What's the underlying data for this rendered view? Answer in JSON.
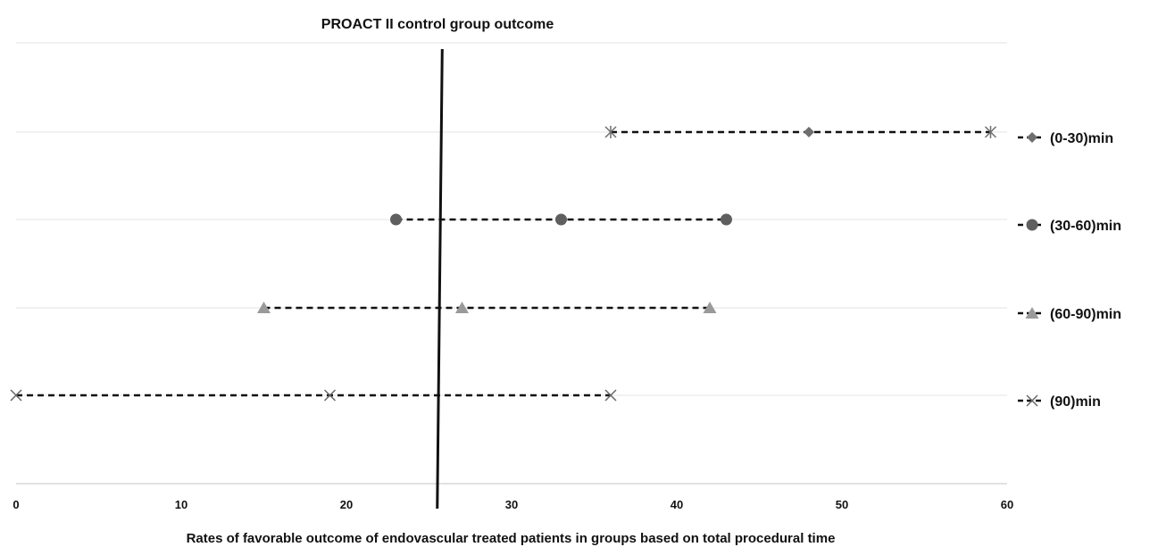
{
  "chart_data": {
    "type": "scatter",
    "title": "PROACT II control group outcome",
    "xlabel": "Rates of favorable outcome of endovascular treated patients in groups based on total procedural time",
    "ylabel": "",
    "xlim": [
      0,
      60
    ],
    "xticks": [
      0,
      10,
      20,
      30,
      40,
      50,
      60
    ],
    "grid": "horizontal",
    "legend_position": "right",
    "reference_line": {
      "x_top": 25.8,
      "x_bottom": 25.5
    },
    "series": [
      {
        "name": "(0-30)min",
        "marker": "diamond",
        "color": "#6e6e6e",
        "end_marker": "star",
        "values": [
          36,
          48,
          59
        ]
      },
      {
        "name": "(30-60)min",
        "marker": "circle",
        "color": "#5f5f5f",
        "end_marker": "circle",
        "values": [
          23,
          33,
          43
        ]
      },
      {
        "name": "(60-90)min",
        "marker": "triangle",
        "color": "#9a9a9a",
        "end_marker": "triangle",
        "values": [
          15,
          27,
          42
        ]
      },
      {
        "name": "(90)min",
        "marker": "x",
        "color": "#666666",
        "end_marker": "x",
        "values": [
          0,
          19,
          36
        ]
      }
    ]
  }
}
